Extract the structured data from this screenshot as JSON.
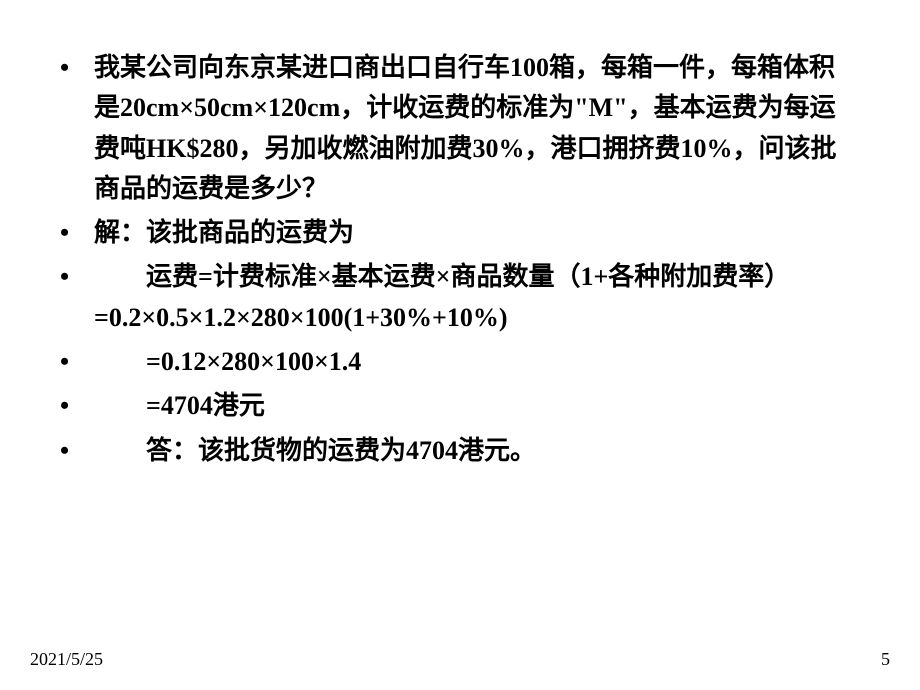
{
  "slide": {
    "items": [
      "我某公司向东京某进口商出口自行车100箱，每箱一件，每箱体积是20cm×50cm×120cm，计收运费的标准为\"M\"，基本运费为每运费吨HK$280，另加收燃油附加费30%，港口拥挤费10%，问该批商品的运费是多少？",
      "解：该批商品的运费为",
      "  运费=计费标准×基本运费×商品数量（1+各种附加费率）=0.2×0.5×1.2×280×100(1+30%+10%)",
      "  =0.12×280×100×1.4",
      "  =4704港元",
      "  答：该批货物的运费为4704港元。"
    ],
    "bullet_char": "•"
  },
  "footer": {
    "date": "2021/5/25",
    "page": "5"
  },
  "style": {
    "text_color": "#000000",
    "background_color": "#ffffff",
    "font_size_pt": 20,
    "footer_font_size_pt": 14
  }
}
